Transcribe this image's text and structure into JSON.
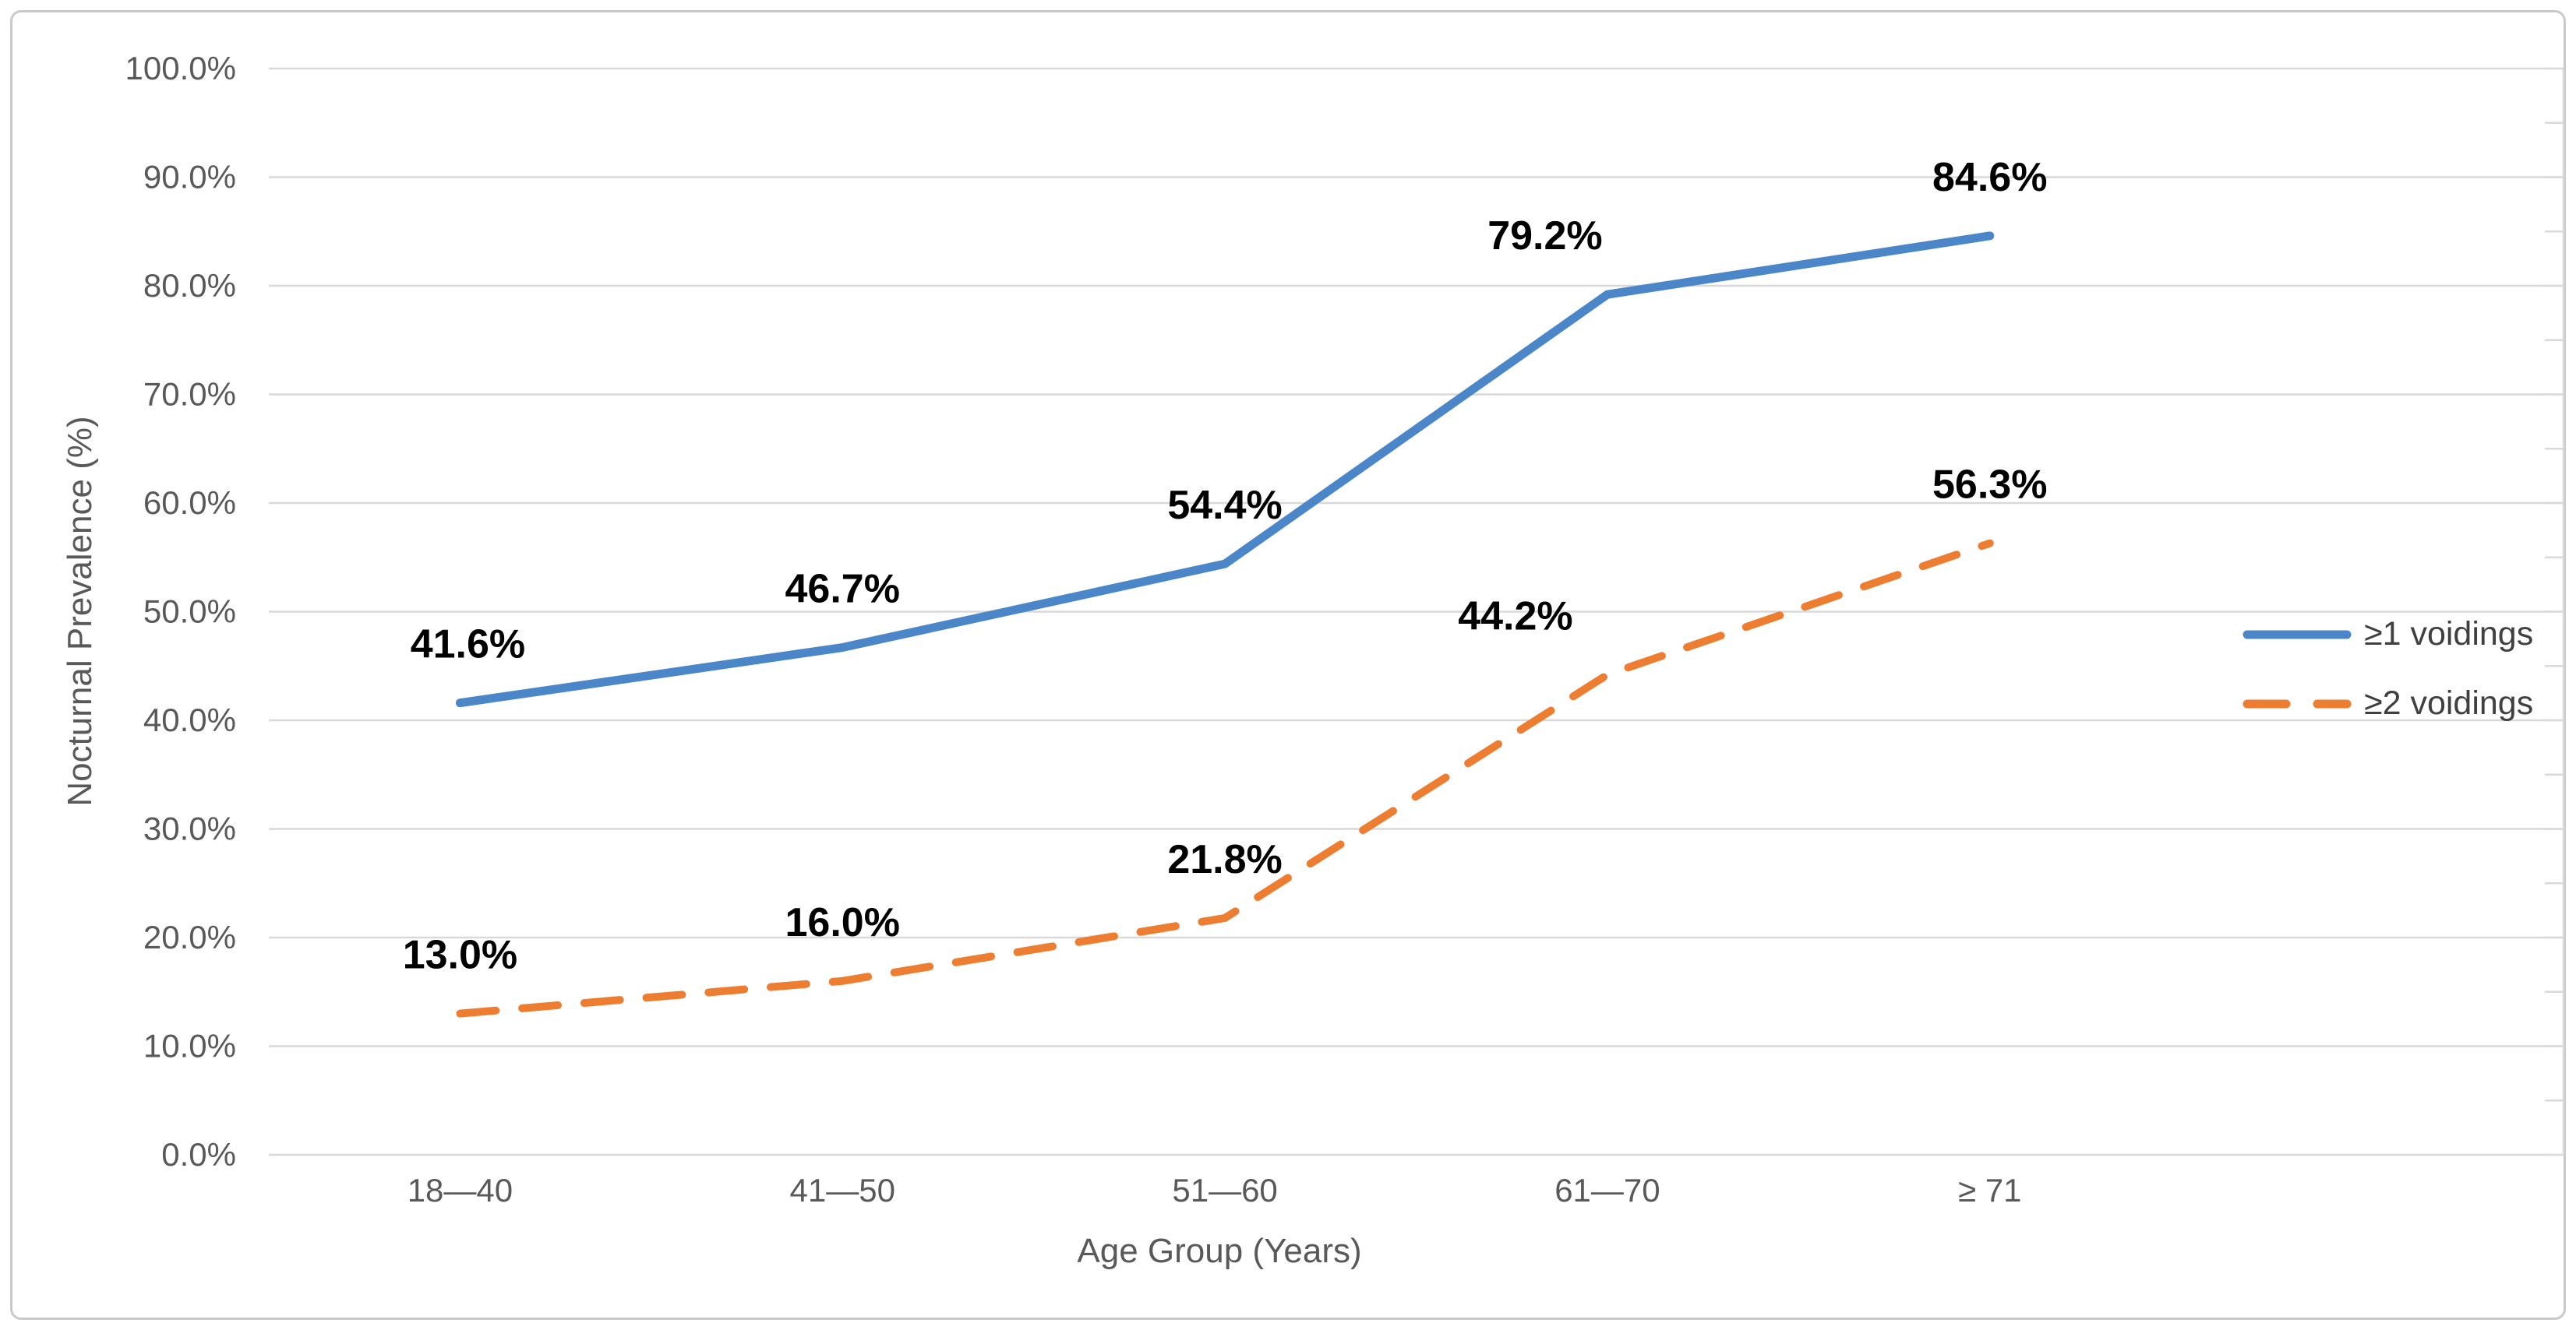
{
  "chart_data": {
    "type": "line",
    "title": "",
    "xlabel": "Age Group (Years)",
    "ylabel": "Nocturnal Prevalence (%)",
    "categories": [
      "18—40",
      "41—50",
      "51—60",
      "61—70",
      "≥ 71"
    ],
    "series": [
      {
        "name": "≥1 voidings",
        "values": [
          41.6,
          46.7,
          54.4,
          79.2,
          84.6
        ],
        "labels": [
          "41.6%",
          "46.7%",
          "54.4%",
          "79.2%",
          "84.6%"
        ],
        "color": "#4A86C8",
        "style": "solid"
      },
      {
        "name": "≥2 voidings",
        "values": [
          13.0,
          16.0,
          21.8,
          44.2,
          56.3
        ],
        "labels": [
          "13.0%",
          "16.0%",
          "21.8%",
          "44.2%",
          "56.3%"
        ],
        "color": "#ED7D31",
        "style": "dashed"
      }
    ],
    "y_axis": {
      "min": 0,
      "max": 100,
      "step": 10,
      "minor_step": 5,
      "tick_labels": [
        "0.0%",
        "10.0%",
        "20.0%",
        "30.0%",
        "40.0%",
        "50.0%",
        "60.0%",
        "70.0%",
        "80.0%",
        "90.0%",
        "100.0%"
      ]
    },
    "legend_position": "right",
    "grid": true,
    "colors": {
      "gridline": "#D9D9D9",
      "axis_text": "#595959",
      "data_label": "#000000",
      "legend_text": "#404040",
      "border": "#C9C9C9"
    }
  }
}
